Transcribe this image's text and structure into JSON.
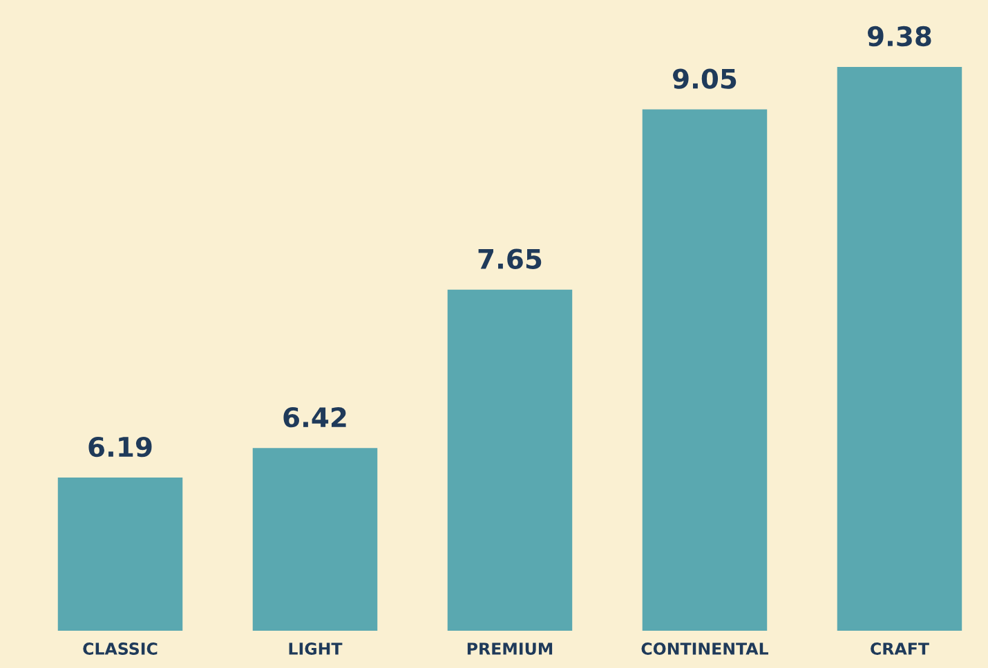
{
  "chart_data": {
    "type": "bar",
    "categories": [
      "CLASSIC",
      "LIGHT",
      "PREMIUM",
      "CONTINENTAL",
      "CRAFT"
    ],
    "values": [
      6.19,
      6.42,
      7.65,
      9.05,
      9.38
    ],
    "color": "#5aa8b0",
    "ylim": [
      5,
      9.9
    ],
    "data_labels": true,
    "grid": false,
    "legend": false
  }
}
